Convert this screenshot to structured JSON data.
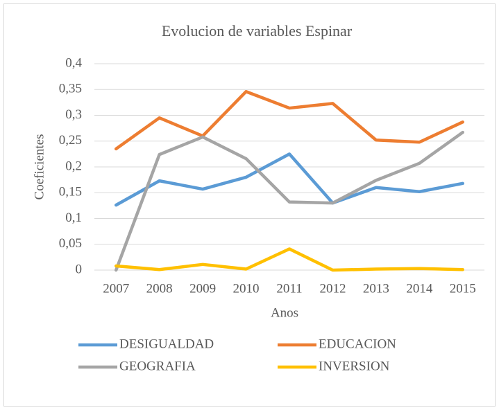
{
  "chart_data": {
    "type": "line",
    "title": "Evolucion de variables Espinar",
    "xlabel": "Anos",
    "ylabel": "Coeficientes",
    "categories": [
      "2007",
      "2008",
      "2009",
      "2010",
      "2011",
      "2012",
      "2013",
      "2014",
      "2015"
    ],
    "series": [
      {
        "name": "DESIGUALDAD",
        "color": "#5b9bd5",
        "values": [
          0.126,
          0.173,
          0.157,
          0.18,
          0.225,
          0.13,
          0.16,
          0.152,
          0.168
        ]
      },
      {
        "name": "EDUCACION",
        "color": "#ed7d31",
        "values": [
          0.235,
          0.295,
          0.26,
          0.346,
          0.314,
          0.323,
          0.252,
          0.248,
          0.287
        ]
      },
      {
        "name": "GEOGRAFIA",
        "color": "#a5a5a5",
        "values": [
          0,
          0.224,
          0.258,
          0.216,
          0.132,
          0.13,
          0.174,
          0.207,
          0.267
        ]
      },
      {
        "name": "INVERSION",
        "color": "#ffc000",
        "values": [
          0.008,
          0.001,
          0.011,
          0.002,
          0.041,
          0,
          0.002,
          0.003,
          0.001
        ]
      }
    ],
    "ylim": [
      0,
      0.4
    ],
    "yticks": [
      0,
      {
        "value": 0.05,
        "label": "0,05"
      },
      {
        "value": 0.1,
        "label": "0,1"
      },
      {
        "value": 0.15,
        "label": "0,15"
      },
      {
        "value": 0.2,
        "label": "0,2"
      },
      {
        "value": 0.25,
        "label": "0,25"
      },
      {
        "value": 0.3,
        "label": "0,3"
      },
      {
        "value": 0.35,
        "label": "0,35"
      },
      {
        "value": 0.4,
        "label": "0,4"
      }
    ],
    "grid": true,
    "legend": "bottom"
  }
}
